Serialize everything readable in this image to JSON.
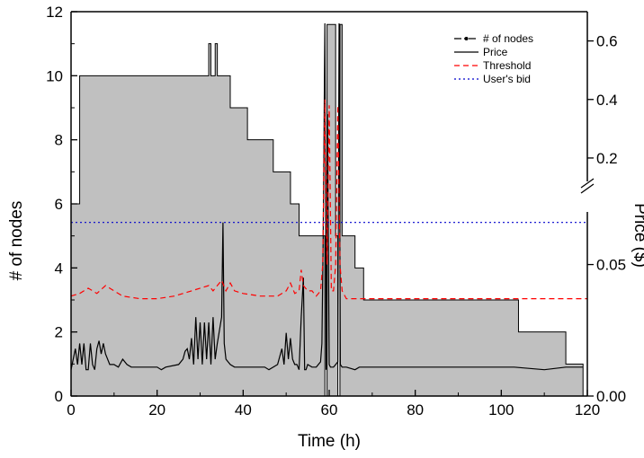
{
  "chart_data": {
    "type": "area",
    "xlabel": "Time (h)",
    "ylabel_left": "# of nodes",
    "ylabel_right": "Price ($)",
    "xlim": [
      0,
      120
    ],
    "ylim_left": [
      0,
      12
    ],
    "right_axis": {
      "broken": true,
      "lower_range": [
        0.0,
        0.07
      ],
      "upper_range": [
        0.12,
        0.7
      ],
      "ticks": [
        {
          "value": 0.0,
          "label": "0.00"
        },
        {
          "value": 0.05,
          "label": "0.05"
        },
        {
          "value": 0.2,
          "label": "0.2"
        },
        {
          "value": 0.4,
          "label": "0.4"
        },
        {
          "value": 0.6,
          "label": "0.6"
        }
      ]
    },
    "x_ticks": [
      0,
      20,
      40,
      60,
      80,
      100,
      120
    ],
    "y_ticks_left": [
      0,
      2,
      4,
      6,
      8,
      10,
      12
    ],
    "legend": {
      "placement": "top-right",
      "entries": [
        {
          "label": "# of nodes",
          "style": "dash-dot",
          "color": "#000000"
        },
        {
          "label": "Price",
          "style": "solid",
          "color": "#000000"
        },
        {
          "label": "Threshold",
          "style": "dashed",
          "color": "#ff0000"
        },
        {
          "label": "User's bid",
          "style": "dotted",
          "color": "#0000cc"
        }
      ]
    },
    "colors": {
      "nodes_fill": "#c0c0c0",
      "nodes_line": "#000000",
      "price": "#000000",
      "threshold": "#ff0000",
      "bid": "#0000cc"
    },
    "series": [
      {
        "name": "# of nodes",
        "axis": "left",
        "step": true,
        "x": [
          0,
          2,
          32,
          32.5,
          33.5,
          34,
          37,
          41,
          47,
          51,
          53,
          59,
          59.5,
          61.5,
          62,
          62.5,
          63,
          66,
          68,
          104,
          115,
          119,
          120
        ],
        "y": [
          6,
          10,
          11,
          10,
          11,
          10,
          9,
          8,
          7,
          6,
          5,
          0,
          11.6,
          5,
          0,
          11.6,
          5,
          4,
          3,
          2,
          1,
          0,
          0
        ]
      },
      {
        "name": "Price",
        "axis": "right",
        "x": [
          0,
          1,
          1.5,
          2,
          2.5,
          3,
          3.5,
          4,
          4.5,
          5,
          5.5,
          6,
          6.5,
          7,
          7.5,
          8,
          9,
          10,
          11,
          12,
          13,
          14,
          20,
          21,
          22,
          25,
          26,
          26.5,
          27,
          27.5,
          28,
          28.5,
          29,
          29.5,
          30,
          30.5,
          31,
          31.5,
          32,
          32.5,
          33,
          33.5,
          34,
          34.5,
          35,
          35.3,
          35.6,
          36,
          37,
          38,
          45,
          46,
          48,
          49,
          49.5,
          50,
          50.5,
          51,
          51.5,
          52,
          52.5,
          53,
          53.5,
          54,
          54.3,
          54.6,
          55,
          56,
          57,
          58,
          58.3,
          58.6,
          59,
          59.3,
          59.6,
          60,
          60.3,
          61,
          61.5,
          62,
          62.3,
          62.6,
          63,
          64,
          66,
          67,
          70,
          80,
          90,
          100,
          103,
          110,
          115,
          118,
          119
        ],
        "y": [
          0.01,
          0.018,
          0.012,
          0.02,
          0.012,
          0.02,
          0.01,
          0.01,
          0.02,
          0.012,
          0.01,
          0.018,
          0.021,
          0.016,
          0.02,
          0.016,
          0.012,
          0.012,
          0.011,
          0.014,
          0.012,
          0.011,
          0.011,
          0.01,
          0.011,
          0.012,
          0.014,
          0.017,
          0.018,
          0.014,
          0.022,
          0.012,
          0.03,
          0.014,
          0.028,
          0.012,
          0.028,
          0.014,
          0.028,
          0.012,
          0.03,
          0.014,
          0.02,
          0.025,
          0.03,
          0.066,
          0.02,
          0.014,
          0.012,
          0.011,
          0.011,
          0.01,
          0.012,
          0.018,
          0.012,
          0.024,
          0.014,
          0.022,
          0.014,
          0.012,
          0.012,
          0.01,
          0.03,
          0.045,
          0.01,
          0.01,
          0.012,
          0.011,
          0.011,
          0.013,
          0.02,
          0.06,
          0.66,
          0.01,
          0.35,
          0.012,
          0.011,
          0.011,
          0.012,
          0.013,
          0.66,
          0.012,
          0.011,
          0.011,
          0.01,
          0.011,
          0.011,
          0.011,
          0.011,
          0.011,
          0.011,
          0.01,
          0.011,
          0.011,
          0.011
        ]
      },
      {
        "name": "Threshold",
        "axis": "right",
        "x": [
          0,
          2,
          4,
          6,
          8,
          10,
          12,
          16,
          20,
          24,
          26,
          28,
          30,
          32,
          33,
          34,
          35,
          36,
          37,
          38,
          40,
          44,
          48,
          50,
          51,
          52,
          53,
          53.5,
          54,
          55,
          56,
          57,
          58,
          58.5,
          59,
          59.5,
          60,
          60.5,
          61,
          61.5,
          62,
          62.5,
          63,
          64,
          70,
          80,
          90,
          100,
          110,
          120
        ],
        "y": [
          0.038,
          0.039,
          0.041,
          0.039,
          0.042,
          0.04,
          0.038,
          0.037,
          0.037,
          0.038,
          0.039,
          0.04,
          0.041,
          0.042,
          0.04,
          0.042,
          0.044,
          0.04,
          0.043,
          0.04,
          0.039,
          0.038,
          0.038,
          0.04,
          0.043,
          0.039,
          0.04,
          0.048,
          0.042,
          0.04,
          0.04,
          0.038,
          0.04,
          0.05,
          0.4,
          0.05,
          0.38,
          0.04,
          0.04,
          0.05,
          0.38,
          0.05,
          0.04,
          0.037,
          0.037,
          0.037,
          0.037,
          0.037,
          0.037,
          0.037
        ]
      },
      {
        "name": "User's bid",
        "axis": "right",
        "x": [
          0,
          120
        ],
        "y": [
          0.066,
          0.066
        ]
      }
    ]
  }
}
